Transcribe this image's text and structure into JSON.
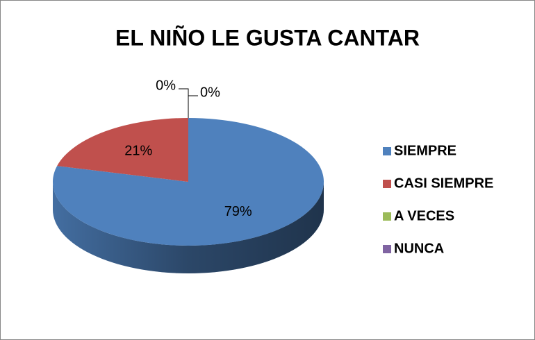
{
  "chart_data": {
    "type": "pie",
    "title": "EL NIÑO LE GUSTA CANTAR",
    "categories": [
      "SIEMPRE",
      "CASI SIEMPRE",
      "A VECES",
      "NUNCA"
    ],
    "values": [
      79,
      21,
      0,
      0
    ],
    "value_labels": [
      "79%",
      "21%",
      "0%",
      "0%"
    ],
    "colors": [
      "#4f81bd",
      "#c0504d",
      "#9bbb59",
      "#8064a2"
    ],
    "legend": "right"
  }
}
